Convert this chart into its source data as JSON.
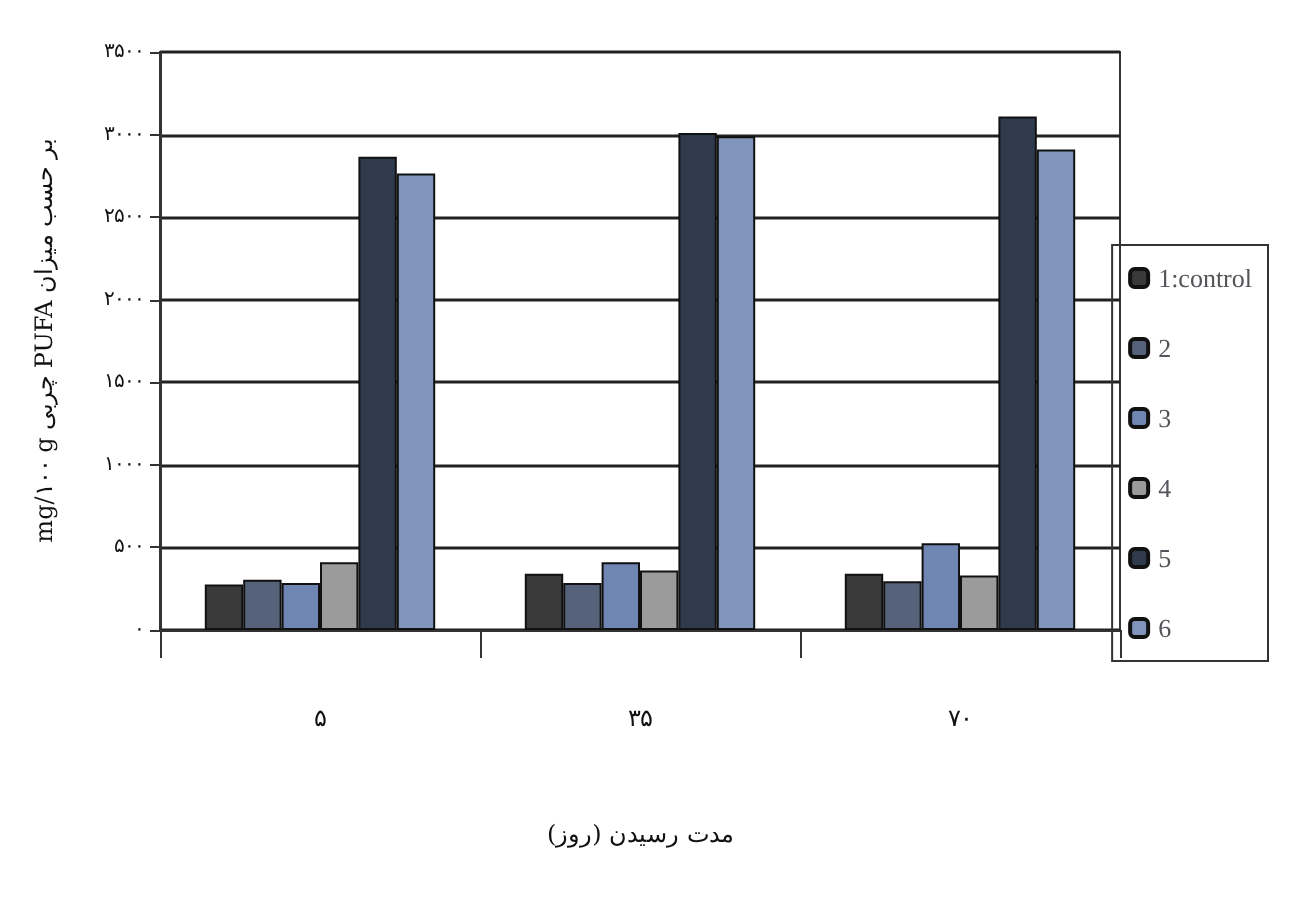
{
  "chart_data": {
    "type": "bar",
    "xlabel": "مدت رسیدن (روز)",
    "ylabel": "mg/۱۰۰ g چربی PUFA بر حسب میزان",
    "categories": [
      "۵",
      "۳۵",
      "۷۰"
    ],
    "series": [
      {
        "name": "1:control",
        "color": "#3a3a3a",
        "values": [
          275,
          340,
          340
        ]
      },
      {
        "name": "2",
        "color": "#56627a",
        "values": [
          305,
          285,
          295
        ]
      },
      {
        "name": "3",
        "color": "#6f86b3",
        "values": [
          285,
          410,
          525
        ]
      },
      {
        "name": "4",
        "color": "#9b9b9b",
        "values": [
          410,
          360,
          330
        ]
      },
      {
        "name": "5",
        "color": "#2f3a4d",
        "values": [
          2865,
          3010,
          3110
        ]
      },
      {
        "name": "6",
        "color": "#8194bb",
        "values": [
          2765,
          2990,
          2910
        ]
      }
    ],
    "ylim": [
      0,
      3500
    ],
    "yticks": [
      {
        "value": 0,
        "label": "۰"
      },
      {
        "value": 500,
        "label": "۵۰۰"
      },
      {
        "value": 1000,
        "label": "۱۰۰۰"
      },
      {
        "value": 1500,
        "label": "۱۵۰۰"
      },
      {
        "value": 2000,
        "label": "۲۰۰۰"
      },
      {
        "value": 2500,
        "label": "۲۵۰۰"
      },
      {
        "value": 3000,
        "label": "۳۰۰۰"
      },
      {
        "value": 3500,
        "label": "۳۵۰۰"
      }
    ],
    "grid": "y",
    "legend": "right"
  }
}
